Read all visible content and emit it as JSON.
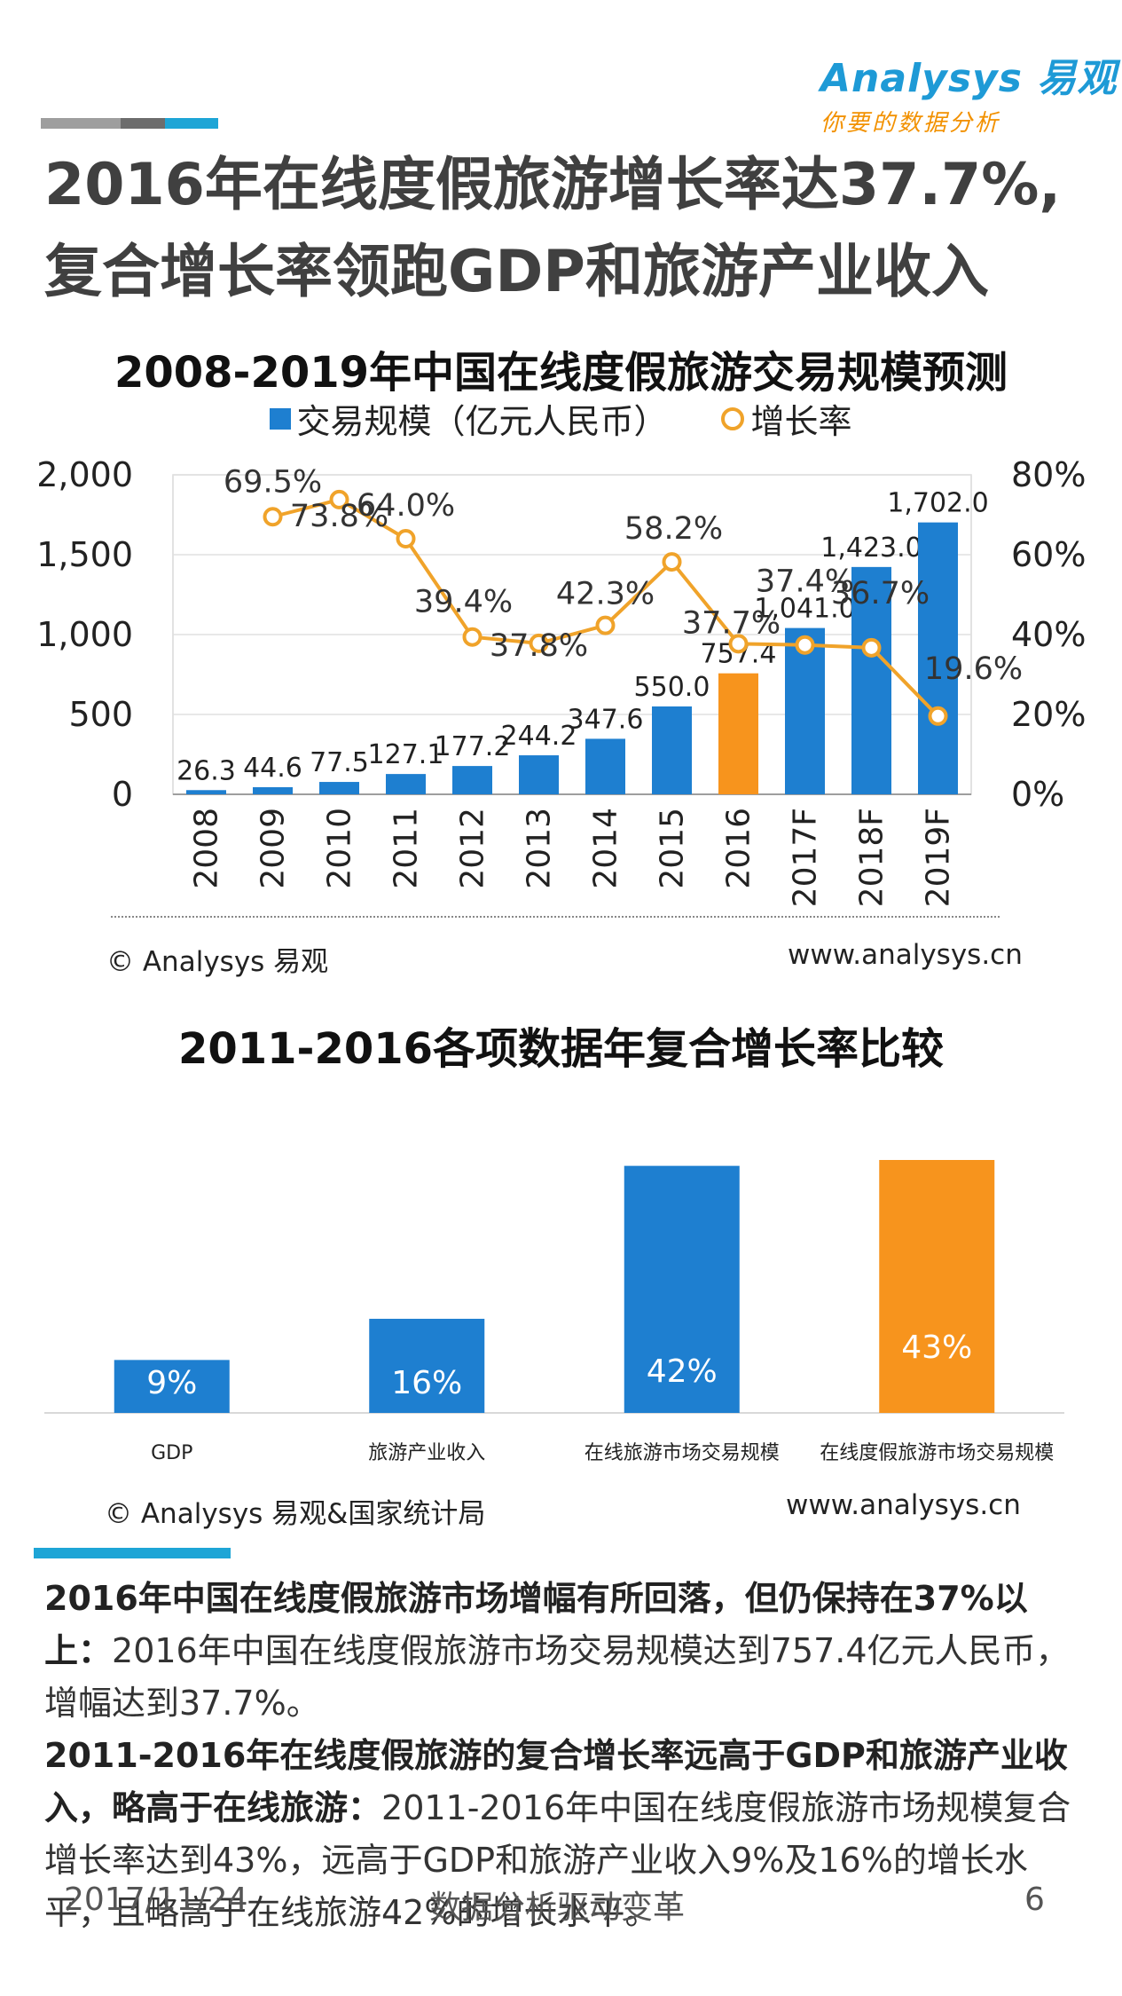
{
  "header": {
    "logo": "Analysys 易观",
    "slogan": "你要的数据分析"
  },
  "title_lines": [
    "2016年在线度假旅游增长率达37.7%,",
    "复合增长率领跑GDP和旅游产业收入"
  ],
  "chart1": {
    "title": "2008-2019年中国在线度假旅游交易规模预测",
    "legend_bar": "交易规模（亿元人民币）",
    "legend_line": "增长率",
    "source_left": "© Analysys 易观",
    "source_right": "www.analysys.cn"
  },
  "chart2": {
    "title": "2011-2016各项数据年复合增长率比较",
    "source_left": "© Analysys 易观&国家统计局",
    "source_right": "www.analysys.cn"
  },
  "chart_data": [
    {
      "type": "bar+line",
      "title": "2008-2019年中国在线度假旅游交易规模预测",
      "categories": [
        "2008",
        "2009",
        "2010",
        "2011",
        "2012",
        "2013",
        "2014",
        "2015",
        "2016",
        "2017F",
        "2018F",
        "2019F"
      ],
      "series": [
        {
          "name": "交易规模（亿元人民币）",
          "axis": "left",
          "values": [
            26.3,
            44.6,
            77.5,
            127.1,
            177.2,
            244.2,
            347.6,
            550.0,
            757.4,
            1041.0,
            1423.0,
            1702.0
          ],
          "labels": [
            "26.3",
            "44.6",
            "77.5",
            "127.1",
            "177.2",
            "244.2",
            "347.6",
            "550.0",
            "757.4",
            "1,041.0",
            "1,423.0",
            "1,702.0"
          ]
        },
        {
          "name": "增长率",
          "axis": "right",
          "values": [
            null,
            69.5,
            73.8,
            64.0,
            39.4,
            37.8,
            42.3,
            58.2,
            37.7,
            37.4,
            36.7,
            19.6
          ],
          "labels": [
            "",
            "69.5%",
            "73.8%",
            "64.0%",
            "39.4%",
            "37.8%",
            "42.3%",
            "58.2%",
            "37.7%",
            "37.4%",
            "36.7%",
            "19.6%"
          ]
        }
      ],
      "y_left": {
        "min": 0,
        "max": 2000,
        "ticks": [
          "0",
          "500",
          "1,000",
          "1,500",
          "2,000"
        ]
      },
      "y_right": {
        "min": 0,
        "max": 80,
        "ticks": [
          "0%",
          "20%",
          "40%",
          "60%",
          "80%"
        ]
      },
      "highlight_category": "2016",
      "colors": {
        "bar": "#1e7fd0",
        "highlight": "#f7941d",
        "line": "#f0a32a"
      }
    },
    {
      "type": "bar",
      "title": "2011-2016各项数据年复合增长率比较",
      "categories": [
        "GDP",
        "旅游产业收入",
        "在线旅游市场交易规模",
        "在线度假旅游市场交易规模"
      ],
      "values": [
        9,
        16,
        42,
        43
      ],
      "labels": [
        "9%",
        "16%",
        "42%",
        "43%"
      ],
      "colors": {
        "bar": "#1e7fd0",
        "highlight": "#f7941d"
      }
    }
  ],
  "body": {
    "p1_bold": "2016年中国在线度假旅游市场增幅有所回落，但仍保持在37%以上：",
    "p1_text": "2016年中国在线度假旅游市场交易规模达到757.4亿元人民币，增幅达到37.7%。",
    "p2_bold": "2011-2016年在线度假旅游的复合增长率远高于GDP和旅游产业收入，略高于在线旅游：",
    "p2_text": "2011-2016年中国在线度假旅游市场规模复合增长率达到43%，远高于GDP和旅游产业收入9%及16%的增长水平，且略高于在线旅游42%的增长水平。"
  },
  "footer": {
    "date": "2017/11/24",
    "slogan": "数据分析驱动变革",
    "page": "6"
  }
}
